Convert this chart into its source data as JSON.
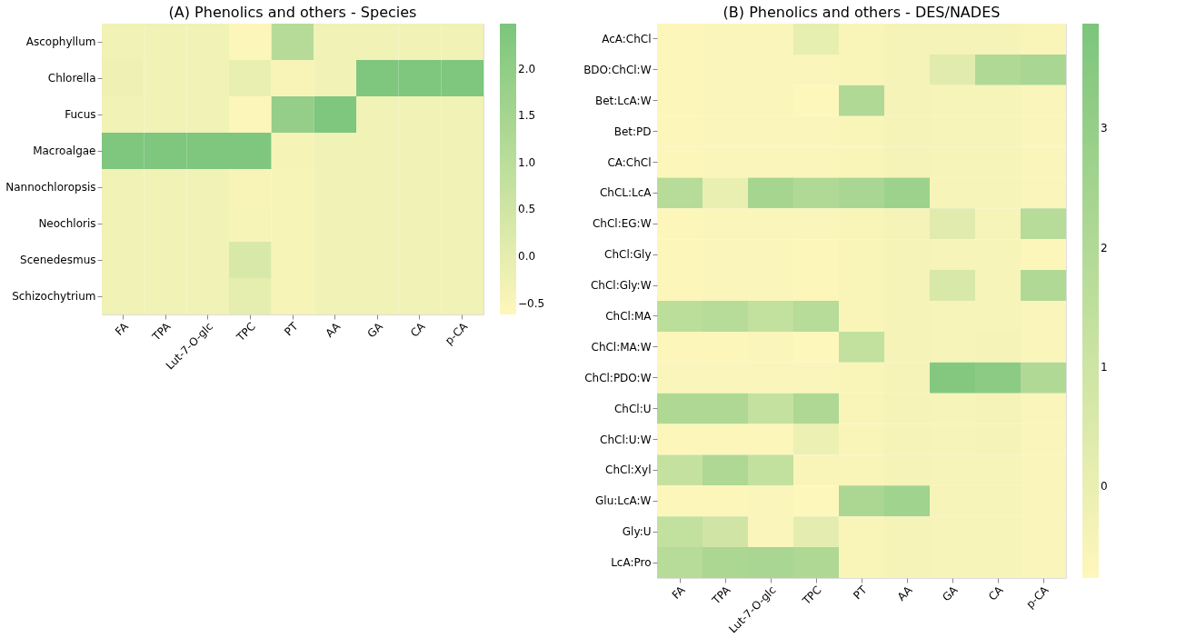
{
  "chart_data": [
    {
      "type": "heatmap",
      "title": "(A) Phenolics and others - Species",
      "categories": [
        "FA",
        "TPA",
        "Lut-7-O-glc",
        "TPC",
        "PT",
        "AA",
        "GA",
        "CA",
        "p-CA"
      ],
      "y_categories": [
        "Ascophyllum",
        "Chlorella",
        "Fucus",
        "Macroalgae",
        "Nannochloropsis",
        "Neochloris",
        "Scenedesmus",
        "Schizochytrium"
      ],
      "cells": [
        [
          -0.3,
          -0.3,
          -0.3,
          -0.55,
          1.1,
          -0.3,
          -0.3,
          -0.3,
          -0.3
        ],
        [
          -0.25,
          -0.3,
          -0.3,
          -0.1,
          -0.45,
          -0.3,
          2.4,
          2.4,
          2.4
        ],
        [
          -0.3,
          -0.3,
          -0.3,
          -0.55,
          1.9,
          2.4,
          -0.3,
          -0.3,
          -0.3
        ],
        [
          2.4,
          2.4,
          2.4,
          2.4,
          -0.4,
          -0.3,
          -0.3,
          -0.3,
          -0.3
        ],
        [
          -0.3,
          -0.3,
          -0.3,
          -0.45,
          -0.42,
          -0.3,
          -0.3,
          -0.3,
          -0.3
        ],
        [
          -0.3,
          -0.3,
          -0.3,
          -0.42,
          -0.42,
          -0.3,
          -0.3,
          -0.3,
          -0.3
        ],
        [
          -0.3,
          -0.3,
          -0.3,
          0.3,
          -0.42,
          -0.3,
          -0.3,
          -0.3,
          -0.3
        ],
        [
          -0.3,
          -0.3,
          -0.3,
          0.0,
          -0.42,
          -0.3,
          -0.3,
          -0.3,
          -0.3
        ]
      ],
      "clim": [
        -0.62,
        2.48
      ],
      "cticks": [
        {
          "value": -0.5,
          "label": "−0.5"
        },
        {
          "value": 0,
          "label": "0.0"
        },
        {
          "value": 0.5,
          "label": "0.5"
        },
        {
          "value": 1,
          "label": "1.0"
        },
        {
          "value": 1.5,
          "label": "1.5"
        },
        {
          "value": 2,
          "label": "2.0"
        }
      ],
      "grid": false
    },
    {
      "type": "heatmap",
      "title": "(B) Phenolics and others - DES/NADES",
      "categories": [
        "FA",
        "TPA",
        "Lut-7-O-glc",
        "TPC",
        "PT",
        "AA",
        "GA",
        "CA",
        "p-CA"
      ],
      "y_categories": [
        "AcA:ChCl",
        "BDO:ChCl:W",
        "Bet:LcA:W",
        "Bet:PD",
        "CA:ChCl",
        "ChCL:LcA",
        "ChCl:EG:W",
        "ChCl:Gly",
        "ChCl:Gly:W",
        "ChCl:MA",
        "ChCl:MA:W",
        "ChCl:PDO:W",
        "ChCl:U",
        "ChCl:U:W",
        "ChCl:Xyl",
        "Glu:LcA:W",
        "Gly:U",
        "LcA:Pro"
      ],
      "cells": [
        [
          -0.7,
          -0.6,
          -0.6,
          0.1,
          -0.55,
          -0.4,
          -0.4,
          -0.4,
          -0.55
        ],
        [
          -0.65,
          -0.6,
          -0.6,
          -0.6,
          -0.55,
          -0.4,
          0.3,
          2.0,
          2.3
        ],
        [
          -0.65,
          -0.6,
          -0.6,
          -0.75,
          2.0,
          -0.4,
          -0.45,
          -0.45,
          -0.6
        ],
        [
          -0.65,
          -0.6,
          -0.6,
          -0.6,
          -0.55,
          -0.4,
          -0.45,
          -0.45,
          -0.6
        ],
        [
          -0.65,
          -0.6,
          -0.6,
          -0.6,
          -0.55,
          -0.4,
          -0.45,
          -0.45,
          -0.6
        ],
        [
          1.8,
          0.0,
          2.4,
          2.0,
          2.3,
          2.7,
          -0.45,
          -0.45,
          -0.6
        ],
        [
          -0.65,
          -0.6,
          -0.6,
          -0.6,
          -0.55,
          -0.4,
          0.3,
          -0.45,
          1.8
        ],
        [
          -0.7,
          -0.6,
          -0.6,
          -0.65,
          -0.55,
          -0.4,
          -0.45,
          -0.45,
          -0.65
        ],
        [
          -0.65,
          -0.6,
          -0.6,
          -0.65,
          -0.55,
          -0.4,
          0.6,
          -0.45,
          2.0
        ],
        [
          1.6,
          1.8,
          1.4,
          1.8,
          -0.55,
          -0.4,
          -0.45,
          -0.45,
          -0.6
        ],
        [
          -0.7,
          -0.65,
          -0.6,
          -0.75,
          1.4,
          -0.4,
          -0.45,
          -0.4,
          -0.6
        ],
        [
          -0.6,
          -0.6,
          -0.6,
          -0.6,
          -0.55,
          -0.4,
          3.6,
          3.3,
          2.0
        ],
        [
          2.1,
          2.1,
          1.3,
          2.1,
          -0.55,
          -0.4,
          -0.45,
          -0.4,
          -0.6
        ],
        [
          -0.7,
          -0.65,
          -0.65,
          -0.1,
          -0.55,
          -0.4,
          -0.45,
          -0.4,
          -0.6
        ],
        [
          1.3,
          2.1,
          1.4,
          -0.55,
          -0.55,
          -0.4,
          -0.45,
          -0.45,
          -0.6
        ],
        [
          -0.7,
          -0.65,
          -0.6,
          -0.75,
          2.2,
          2.6,
          -0.45,
          -0.45,
          -0.6
        ],
        [
          1.4,
          0.9,
          -0.6,
          0.2,
          -0.55,
          -0.4,
          -0.45,
          -0.45,
          -0.6
        ],
        [
          1.8,
          2.2,
          2.3,
          2.1,
          -0.55,
          -0.4,
          -0.45,
          -0.45,
          -0.6
        ]
      ],
      "clim": [
        -0.77,
        3.88
      ],
      "cticks": [
        0,
        1,
        2,
        3
      ],
      "grid": false
    }
  ]
}
